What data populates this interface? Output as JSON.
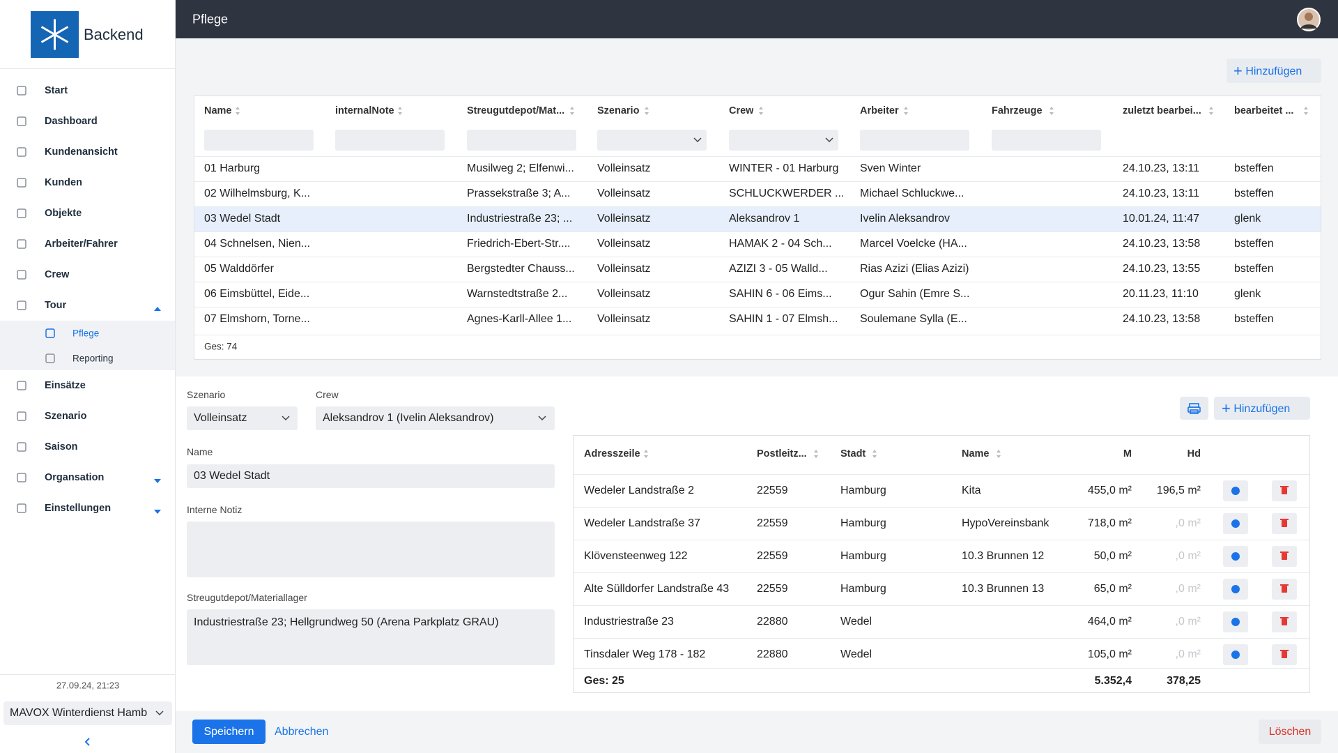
{
  "sidebar": {
    "brand": "Backend",
    "menu": [
      "Start",
      "Dashboard",
      "Kundenansicht",
      "Kunden",
      "Objekte",
      "Arbeiter/Fahrer",
      "Crew",
      "Tour"
    ],
    "tour_submenu": [
      "Pflege",
      "Reporting"
    ],
    "menu_after": [
      "Einsätze",
      "Szenario",
      "Saison",
      "Organsation",
      "Einstellungen"
    ],
    "timestamp": "27.09.24, 21:23",
    "tenant": "MAVOX Winterdienst Hamb"
  },
  "header": {
    "title": "Pflege"
  },
  "top_panel": {
    "add_button": "Hinzufügen",
    "columns": [
      "Name",
      "internalNote",
      "Streugutdepot/Mat...",
      "Szenario",
      "Crew",
      "Arbeiter",
      "Fahrzeuge",
      "zuletzt bearbei...",
      "bearbeitet ..."
    ],
    "rows": [
      [
        "01 Harburg",
        null,
        "Musilweg 2; Elfenwi...",
        "Volleinsatz",
        "WINTER - 01 Harburg",
        "Sven Winter",
        null,
        "24.10.23, 13:11",
        "bsteffen"
      ],
      [
        "02 Wilhelmsburg, K...",
        null,
        "Prassekstraße 3; A...",
        "Volleinsatz",
        "SCHLUCKWERDER ...",
        "Michael Schluckwe...",
        null,
        "24.10.23, 13:11",
        "bsteffen"
      ],
      [
        "03 Wedel Stadt",
        null,
        "Industriestraße 23; ...",
        "Volleinsatz",
        "Aleksandrov 1",
        "Ivelin Aleksandrov",
        null,
        "10.01.24, 11:47",
        "glenk"
      ],
      [
        "04 Schnelsen, Nien...",
        null,
        "Friedrich-Ebert-Str....",
        "Volleinsatz",
        "HAMAK 2 - 04 Sch...",
        "Marcel Voelcke (HA...",
        null,
        "24.10.23, 13:58",
        "bsteffen"
      ],
      [
        "05 Walddörfer",
        null,
        "Bergstedter Chauss...",
        "Volleinsatz",
        "AZIZI 3 - 05 Walld...",
        "Rias Azizi (Elias Azizi)",
        null,
        "24.10.23, 13:55",
        "bsteffen"
      ],
      [
        "06 Eimsbüttel, Eide...",
        null,
        "Warnstedtstraße 2...",
        "Volleinsatz",
        "SAHIN 6 - 06 Eims...",
        "Ogur Sahin (Emre S...",
        null,
        "20.11.23, 11:10",
        "glenk"
      ],
      [
        "07 Elmshorn, Torne...",
        null,
        "Agnes-Karll-Allee 1...",
        "Volleinsatz",
        "SAHIN 1 - 07 Elmsh...",
        "Soulemane Sylla (E...",
        null,
        "24.10.23, 13:58",
        "bsteffen"
      ]
    ],
    "total": "Ges: 74"
  },
  "form": {
    "szenario_label": "Szenario",
    "szenario_value": "Volleinsatz",
    "crew_label": "Crew",
    "crew_value": "Aleksandrov 1 (Ivelin Aleksandrov)",
    "name_label": "Name",
    "name_value": "03 Wedel Stadt",
    "note_label": "Interne Notiz",
    "depot_label": "Streugutdepot/Materiallager",
    "depot_value": "Industriestraße 23; Hellgrundweg 50 (Arena Parkplatz GRAU)"
  },
  "address_panel": {
    "add_button": "Hinzufügen",
    "columns": [
      "Adresszeile",
      "Postleitz...",
      "Stadt",
      "Name",
      "M",
      "Hd"
    ],
    "rows": [
      [
        "Wedeler Landstraße 2",
        "22559",
        "Hamburg",
        "Kita",
        "455,0 m²",
        "196,5 m²"
      ],
      [
        "Wedeler Landstraße 37",
        "22559",
        "Hamburg",
        "HypoVereinsbank",
        "718,0 m²",
        ",0 m²"
      ],
      [
        "Klövensteenweg 122",
        "22559",
        "Hamburg",
        "10.3 Brunnen 12",
        "50,0 m²",
        ",0 m²"
      ],
      [
        "Alte Sülldorfer Landstraße 43",
        "22559",
        "Hamburg",
        "10.3 Brunnen 13",
        "65,0 m²",
        ",0 m²"
      ],
      [
        "Industriestraße 23",
        "22880",
        "Wedel",
        null,
        "464,0 m²",
        ",0 m²"
      ],
      [
        "Tinsdaler Weg 178 - 182",
        "22880",
        "Wedel",
        null,
        "105,0 m²",
        ",0 m²"
      ]
    ],
    "total_label": "Ges: 25",
    "total_m": "5.352,4",
    "total_hd": "378,25"
  },
  "footer": {
    "save": "Speichern",
    "cancel": "Abbrechen",
    "delete": "Löschen"
  }
}
